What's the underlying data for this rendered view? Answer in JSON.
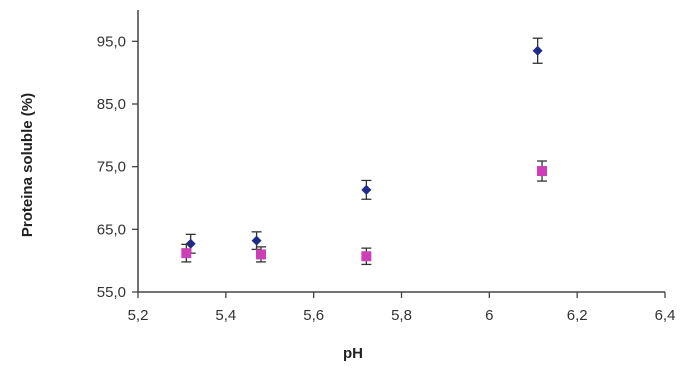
{
  "chart_data": {
    "type": "scatter",
    "title": "",
    "xlabel": "pH",
    "ylabel": "Proteina soluble (%)",
    "xlim": [
      5.2,
      6.4
    ],
    "ylim": [
      55.0,
      100.0
    ],
    "x_ticks": [
      "5,2",
      "5,4",
      "5,6",
      "5,8",
      "6",
      "6,2",
      "6,4"
    ],
    "x_tick_values": [
      5.2,
      5.4,
      5.6,
      5.8,
      6.0,
      6.2,
      6.4
    ],
    "y_ticks": [
      "55,0",
      "65,0",
      "75,0",
      "85,0",
      "95,0"
    ],
    "y_tick_values": [
      55,
      65,
      75,
      85,
      95
    ],
    "grid": false,
    "legend": "none",
    "series": [
      {
        "marker": "diamond",
        "color": "#1f2a8c",
        "x": [
          5.32,
          5.47,
          5.72,
          6.11
        ],
        "y": [
          62.7,
          63.2,
          71.3,
          93.5
        ],
        "error": [
          1.5,
          1.4,
          1.5,
          2.0
        ]
      },
      {
        "marker": "square",
        "color": "#cc3fb6",
        "x": [
          5.31,
          5.48,
          5.72,
          6.12
        ],
        "y": [
          61.2,
          61.0,
          60.7,
          74.3
        ],
        "error": [
          1.4,
          1.2,
          1.3,
          1.6
        ]
      }
    ]
  }
}
